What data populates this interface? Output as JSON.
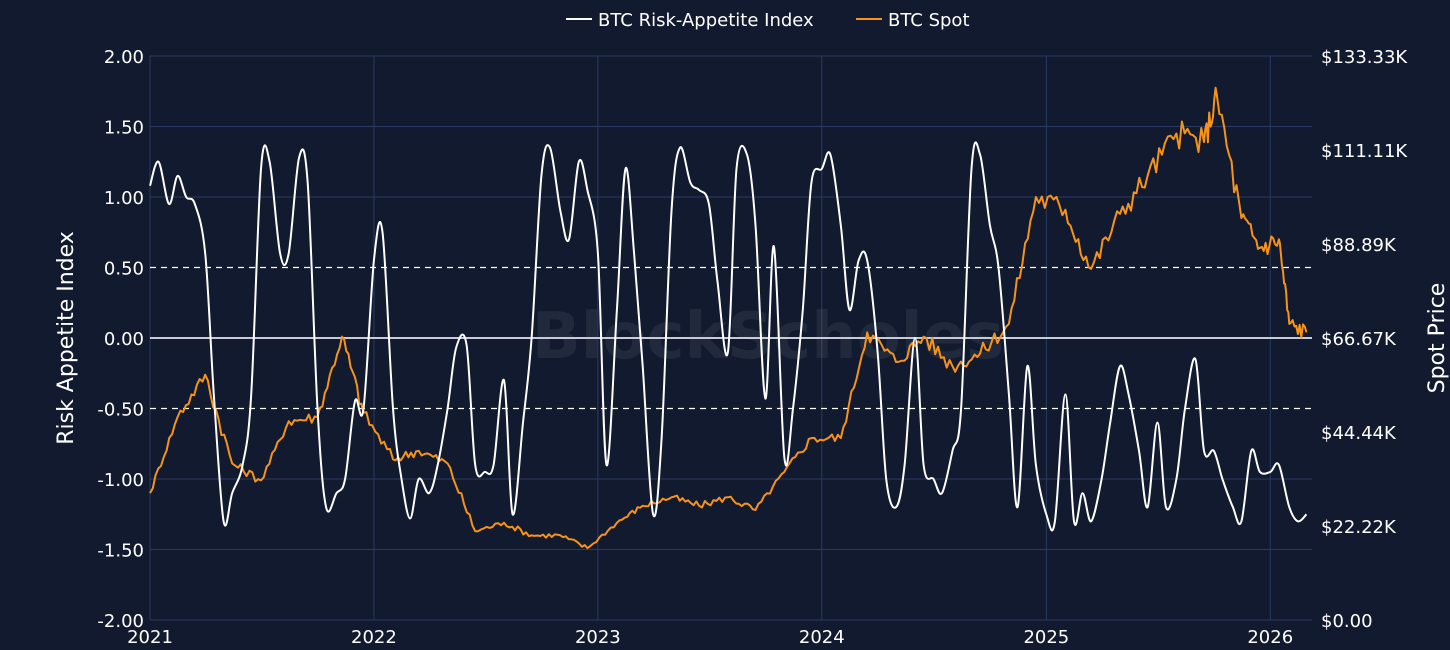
{
  "colors": {
    "background": "#111a2e",
    "grid": "#2a3a63",
    "risk_line": "#ffffff",
    "spot_line": "#f7931a",
    "zero_line": "#c8cbd3",
    "ref_line": "#ffffff"
  },
  "watermark": "BlockScholes",
  "chart_data": {
    "type": "line",
    "legend": {
      "placement": "top-center",
      "items": [
        "BTC Risk-Appetite Index",
        "BTC Spot"
      ]
    },
    "ylabel": "Risk Appetite Index",
    "y2label": "Spot Price",
    "ylim": [
      -2,
      2
    ],
    "y2lim": [
      0,
      133333
    ],
    "x_ticks": [
      "2021",
      "2022",
      "2023",
      "2024",
      "2025",
      "2026"
    ],
    "y_ticks": [
      "-2.00",
      "-1.50",
      "-1.00",
      "-0.50",
      "0.00",
      "0.50",
      "1.00",
      "1.50",
      "2.00"
    ],
    "y2_ticks": [
      "$0.00",
      "$22.22K",
      "$44.44K",
      "$66.67K",
      "$88.89K",
      "$111.11K",
      "$133.33K"
    ],
    "grid": true,
    "reference_lines": [
      0.5,
      -0.5
    ],
    "series": [
      {
        "name": "BTC Risk-Appetite Index",
        "axis": "left",
        "x": [
          "2021-01-01",
          "2021-01-15",
          "2021-02-01",
          "2021-02-15",
          "2021-03-01",
          "2021-03-15",
          "2021-04-01",
          "2021-04-15",
          "2021-05-01",
          "2021-05-15",
          "2021-06-01",
          "2021-06-15",
          "2021-07-01",
          "2021-07-15",
          "2021-08-01",
          "2021-08-15",
          "2021-09-01",
          "2021-09-15",
          "2021-10-01",
          "2021-10-15",
          "2021-11-01",
          "2021-11-15",
          "2021-12-01",
          "2021-12-15",
          "2022-01-01",
          "2022-01-15",
          "2022-02-01",
          "2022-02-15",
          "2022-03-01",
          "2022-03-15",
          "2022-04-01",
          "2022-04-15",
          "2022-05-01",
          "2022-05-15",
          "2022-06-01",
          "2022-06-15",
          "2022-07-01",
          "2022-07-15",
          "2022-08-01",
          "2022-08-15",
          "2022-09-01",
          "2022-09-15",
          "2022-10-01",
          "2022-10-15",
          "2022-11-01",
          "2022-11-15",
          "2022-12-01",
          "2022-12-15",
          "2023-01-01",
          "2023-01-15",
          "2023-02-01",
          "2023-02-15",
          "2023-03-01",
          "2023-03-15",
          "2023-04-01",
          "2023-04-15",
          "2023-05-01",
          "2023-05-15",
          "2023-06-01",
          "2023-06-15",
          "2023-07-01",
          "2023-07-15",
          "2023-08-01",
          "2023-08-15",
          "2023-09-01",
          "2023-09-15",
          "2023-10-01",
          "2023-10-15",
          "2023-11-01",
          "2023-11-15",
          "2023-12-01",
          "2023-12-15",
          "2024-01-01",
          "2024-01-15",
          "2024-02-01",
          "2024-02-15",
          "2024-03-01",
          "2024-03-15",
          "2024-04-01",
          "2024-04-15",
          "2024-05-01",
          "2024-05-15",
          "2024-06-01",
          "2024-06-15",
          "2024-07-01",
          "2024-07-15",
          "2024-08-01",
          "2024-08-15",
          "2024-09-01",
          "2024-09-15",
          "2024-10-01",
          "2024-10-15",
          "2024-11-01",
          "2024-11-15",
          "2024-12-01",
          "2024-12-15",
          "2025-01-01",
          "2025-01-15",
          "2025-02-01",
          "2025-02-15",
          "2025-03-01",
          "2025-03-15",
          "2025-04-01",
          "2025-04-15",
          "2025-05-01",
          "2025-05-15",
          "2025-06-01",
          "2025-06-15",
          "2025-07-01",
          "2025-07-15",
          "2025-08-01",
          "2025-08-15",
          "2025-09-01",
          "2025-09-15",
          "2025-10-01",
          "2025-10-15",
          "2025-11-01",
          "2025-11-15",
          "2025-12-01",
          "2025-12-15",
          "2026-01-01",
          "2026-01-15",
          "2026-02-01",
          "2026-02-15",
          "2026-03-01"
        ],
        "values": [
          1.08,
          1.25,
          0.95,
          1.15,
          1.0,
          0.95,
          0.6,
          -0.4,
          -1.3,
          -1.1,
          -0.9,
          -0.4,
          1.2,
          1.25,
          0.6,
          0.6,
          1.28,
          1.1,
          -0.5,
          -1.2,
          -1.1,
          -1.0,
          -0.45,
          -0.5,
          0.55,
          0.75,
          -0.5,
          -1.0,
          -1.28,
          -1.0,
          -1.1,
          -0.9,
          -0.5,
          -0.07,
          -0.05,
          -0.9,
          -0.95,
          -0.9,
          -0.3,
          -1.25,
          -0.6,
          0.0,
          1.15,
          1.35,
          0.9,
          0.7,
          1.25,
          1.05,
          0.6,
          -0.9,
          0.2,
          1.2,
          0.6,
          -0.2,
          -1.25,
          -0.7,
          0.9,
          1.35,
          1.1,
          1.05,
          0.95,
          0.4,
          -0.1,
          1.2,
          1.3,
          0.8,
          -0.43,
          0.65,
          -0.85,
          -0.5,
          0.2,
          1.1,
          1.2,
          1.3,
          0.8,
          0.2,
          0.55,
          0.55,
          -0.1,
          -1.0,
          -1.2,
          -0.9,
          0.0,
          -0.9,
          -1.0,
          -1.1,
          -0.8,
          -0.5,
          1.2,
          1.3,
          0.8,
          0.5,
          -0.4,
          -1.2,
          -0.2,
          -0.9,
          -1.25,
          -1.3,
          -0.4,
          -1.3,
          -1.1,
          -1.3,
          -1.0,
          -0.6,
          -0.2,
          -0.4,
          -0.8,
          -1.2,
          -0.6,
          -1.2,
          -1.0,
          -0.5,
          -0.15,
          -0.8,
          -0.8,
          -1.0,
          -1.2,
          -1.3,
          -0.8,
          -0.95,
          -0.95,
          -0.9,
          -1.2,
          -1.3,
          -1.25
        ],
        "note_values_end": "values beyond the listed x entries are ignored"
      },
      {
        "name": "BTC Spot",
        "axis": "right",
        "x": [
          "2021-01-01",
          "2021-02-15",
          "2021-04-01",
          "2021-05-15",
          "2021-07-01",
          "2021-08-15",
          "2021-10-01",
          "2021-11-10",
          "2021-12-15",
          "2022-02-01",
          "2022-03-15",
          "2022-05-01",
          "2022-06-15",
          "2022-08-01",
          "2022-09-15",
          "2022-11-01",
          "2022-12-15",
          "2023-02-01",
          "2023-03-15",
          "2023-05-01",
          "2023-06-15",
          "2023-08-01",
          "2023-09-15",
          "2023-11-01",
          "2023-12-15",
          "2024-02-01",
          "2024-03-15",
          "2024-05-01",
          "2024-06-15",
          "2024-08-01",
          "2024-09-15",
          "2024-11-01",
          "2024-12-15",
          "2025-02-01",
          "2025-03-15",
          "2025-05-01",
          "2025-06-15",
          "2025-08-01",
          "2025-09-15",
          "2025-10-06",
          "2025-11-15",
          "2025-12-15",
          "2026-01-15",
          "2026-02-01",
          "2026-03-01"
        ],
        "values": [
          30000,
          48000,
          58000,
          37000,
          33000,
          47000,
          48000,
          67000,
          49000,
          38000,
          40000,
          37000,
          21000,
          23000,
          20000,
          20000,
          17000,
          23000,
          27000,
          29000,
          27000,
          29000,
          26000,
          35000,
          43000,
          43000,
          68000,
          61000,
          67000,
          60000,
          63000,
          70000,
          100000,
          97000,
          83000,
          96000,
          105000,
          115000,
          113000,
          124000,
          95000,
          88000,
          90000,
          70000,
          68000
        ]
      }
    ]
  }
}
